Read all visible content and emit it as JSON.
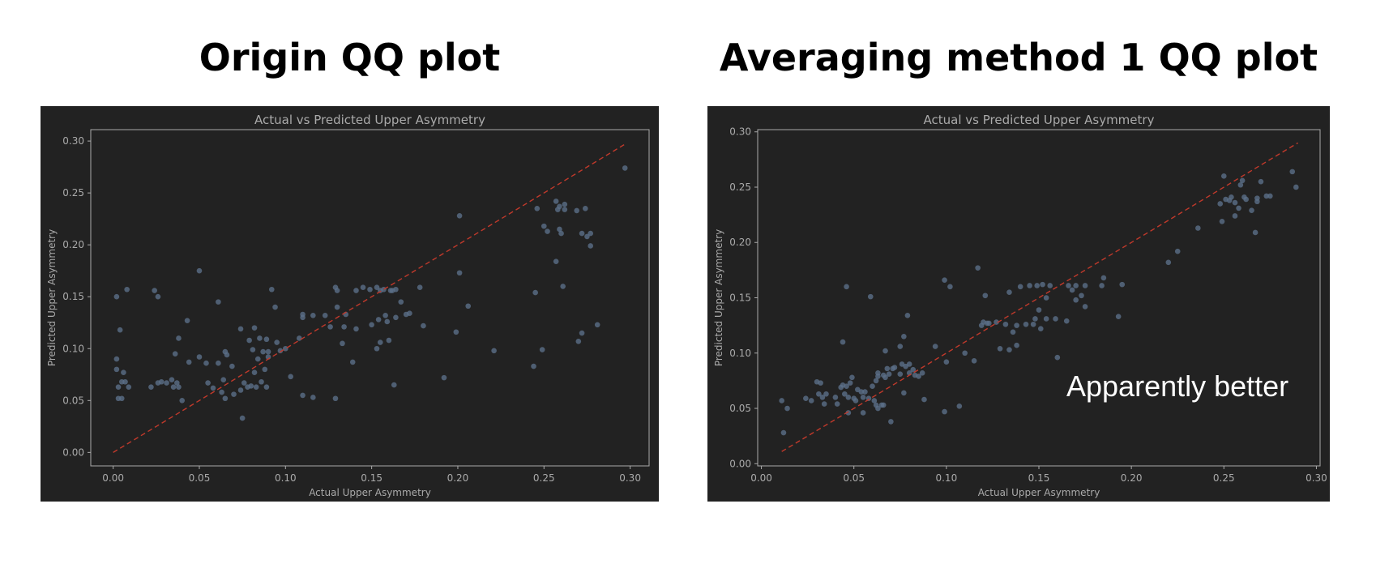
{
  "headings": {
    "left": "Origin QQ plot",
    "right": "Averaging method 1 QQ plot"
  },
  "annotation": "Apparently better",
  "colors": {
    "panel_bg": "#222222",
    "point": "#5b6f88",
    "ref_line": "#c0392b",
    "axis_text": "#aaaaaa",
    "frame": "#aaaaaa"
  },
  "chart_data": [
    {
      "type": "scatter",
      "title": "Actual vs Predicted Upper Asymmetry",
      "xlabel": "Actual Upper Asymmetry",
      "ylabel": "Predicted Upper Asymmetry",
      "xlim": [
        -0.013,
        0.311
      ],
      "ylim": [
        -0.013,
        0.311
      ],
      "xticks": [
        "0.00",
        "0.05",
        "0.10",
        "0.15",
        "0.20",
        "0.25",
        "0.30"
      ],
      "yticks": [
        "0.00",
        "0.05",
        "0.10",
        "0.15",
        "0.20",
        "0.25",
        "0.30"
      ],
      "ref_line": [
        0.0,
        0.297
      ],
      "points": [
        [
          0.002,
          0.15
        ],
        [
          0.002,
          0.09
        ],
        [
          0.002,
          0.08
        ],
        [
          0.003,
          0.052
        ],
        [
          0.003,
          0.063
        ],
        [
          0.004,
          0.118
        ],
        [
          0.005,
          0.052
        ],
        [
          0.005,
          0.068
        ],
        [
          0.006,
          0.077
        ],
        [
          0.007,
          0.068
        ],
        [
          0.008,
          0.157
        ],
        [
          0.009,
          0.063
        ],
        [
          0.022,
          0.063
        ],
        [
          0.024,
          0.156
        ],
        [
          0.026,
          0.15
        ],
        [
          0.026,
          0.067
        ],
        [
          0.028,
          0.068
        ],
        [
          0.031,
          0.067
        ],
        [
          0.034,
          0.07
        ],
        [
          0.035,
          0.063
        ],
        [
          0.036,
          0.095
        ],
        [
          0.037,
          0.067
        ],
        [
          0.038,
          0.063
        ],
        [
          0.038,
          0.11
        ],
        [
          0.04,
          0.05
        ],
        [
          0.043,
          0.127
        ],
        [
          0.044,
          0.087
        ],
        [
          0.05,
          0.175
        ],
        [
          0.05,
          0.092
        ],
        [
          0.054,
          0.086
        ],
        [
          0.055,
          0.067
        ],
        [
          0.058,
          0.062
        ],
        [
          0.061,
          0.145
        ],
        [
          0.061,
          0.086
        ],
        [
          0.063,
          0.058
        ],
        [
          0.064,
          0.07
        ],
        [
          0.065,
          0.097
        ],
        [
          0.065,
          0.052
        ],
        [
          0.066,
          0.094
        ],
        [
          0.069,
          0.083
        ],
        [
          0.07,
          0.056
        ],
        [
          0.074,
          0.119
        ],
        [
          0.074,
          0.06
        ],
        [
          0.075,
          0.033
        ],
        [
          0.076,
          0.067
        ],
        [
          0.078,
          0.063
        ],
        [
          0.079,
          0.108
        ],
        [
          0.08,
          0.064
        ],
        [
          0.081,
          0.099
        ],
        [
          0.082,
          0.077
        ],
        [
          0.082,
          0.12
        ],
        [
          0.083,
          0.063
        ],
        [
          0.084,
          0.09
        ],
        [
          0.085,
          0.11
        ],
        [
          0.086,
          0.068
        ],
        [
          0.087,
          0.097
        ],
        [
          0.088,
          0.08
        ],
        [
          0.089,
          0.109
        ],
        [
          0.089,
          0.063
        ],
        [
          0.09,
          0.092
        ],
        [
          0.09,
          0.097
        ],
        [
          0.092,
          0.157
        ],
        [
          0.094,
          0.14
        ],
        [
          0.095,
          0.106
        ],
        [
          0.097,
          0.098
        ],
        [
          0.1,
          0.1
        ],
        [
          0.103,
          0.073
        ],
        [
          0.108,
          0.11
        ],
        [
          0.11,
          0.055
        ],
        [
          0.11,
          0.13
        ],
        [
          0.11,
          0.133
        ],
        [
          0.116,
          0.132
        ],
        [
          0.116,
          0.053
        ],
        [
          0.123,
          0.132
        ],
        [
          0.126,
          0.121
        ],
        [
          0.129,
          0.159
        ],
        [
          0.129,
          0.052
        ],
        [
          0.13,
          0.156
        ],
        [
          0.13,
          0.14
        ],
        [
          0.133,
          0.105
        ],
        [
          0.134,
          0.121
        ],
        [
          0.135,
          0.133
        ],
        [
          0.139,
          0.087
        ],
        [
          0.141,
          0.156
        ],
        [
          0.141,
          0.119
        ],
        [
          0.145,
          0.159
        ],
        [
          0.149,
          0.157
        ],
        [
          0.15,
          0.123
        ],
        [
          0.153,
          0.159
        ],
        [
          0.153,
          0.1
        ],
        [
          0.154,
          0.128
        ],
        [
          0.155,
          0.106
        ],
        [
          0.155,
          0.156
        ],
        [
          0.157,
          0.157
        ],
        [
          0.158,
          0.132
        ],
        [
          0.159,
          0.126
        ],
        [
          0.16,
          0.108
        ],
        [
          0.161,
          0.156
        ],
        [
          0.162,
          0.156
        ],
        [
          0.163,
          0.065
        ],
        [
          0.164,
          0.157
        ],
        [
          0.164,
          0.13
        ],
        [
          0.167,
          0.145
        ],
        [
          0.17,
          0.133
        ],
        [
          0.172,
          0.134
        ],
        [
          0.178,
          0.159
        ],
        [
          0.18,
          0.122
        ],
        [
          0.192,
          0.072
        ],
        [
          0.199,
          0.116
        ],
        [
          0.201,
          0.173
        ],
        [
          0.201,
          0.228
        ],
        [
          0.206,
          0.141
        ],
        [
          0.221,
          0.098
        ],
        [
          0.244,
          0.083
        ],
        [
          0.245,
          0.154
        ],
        [
          0.246,
          0.235
        ],
        [
          0.249,
          0.099
        ],
        [
          0.25,
          0.218
        ],
        [
          0.252,
          0.213
        ],
        [
          0.257,
          0.242
        ],
        [
          0.257,
          0.184
        ],
        [
          0.258,
          0.234
        ],
        [
          0.259,
          0.215
        ],
        [
          0.259,
          0.237
        ],
        [
          0.26,
          0.211
        ],
        [
          0.261,
          0.16
        ],
        [
          0.262,
          0.239
        ],
        [
          0.262,
          0.234
        ],
        [
          0.269,
          0.233
        ],
        [
          0.27,
          0.107
        ],
        [
          0.272,
          0.211
        ],
        [
          0.272,
          0.115
        ],
        [
          0.274,
          0.235
        ],
        [
          0.275,
          0.208
        ],
        [
          0.277,
          0.211
        ],
        [
          0.277,
          0.199
        ],
        [
          0.281,
          0.123
        ],
        [
          0.297,
          0.274
        ]
      ]
    },
    {
      "type": "scatter",
      "title": "Actual vs Predicted Upper Asymmetry",
      "xlabel": "Actual Upper Asymmetry",
      "ylabel": "Predicted Upper Asymmetry",
      "xlim": [
        -0.002,
        0.302
      ],
      "ylim": [
        -0.002,
        0.302
      ],
      "xticks": [
        "0.00",
        "0.05",
        "0.10",
        "0.15",
        "0.20",
        "0.25",
        "0.30"
      ],
      "yticks": [
        "0.00",
        "0.05",
        "0.10",
        "0.15",
        "0.20",
        "0.25",
        "0.30"
      ],
      "ref_line": [
        0.011,
        0.29
      ],
      "points": [
        [
          0.011,
          0.057
        ],
        [
          0.012,
          0.028
        ],
        [
          0.014,
          0.05
        ],
        [
          0.024,
          0.059
        ],
        [
          0.027,
          0.057
        ],
        [
          0.03,
          0.074
        ],
        [
          0.031,
          0.063
        ],
        [
          0.032,
          0.073
        ],
        [
          0.033,
          0.06
        ],
        [
          0.034,
          0.054
        ],
        [
          0.035,
          0.063
        ],
        [
          0.04,
          0.06
        ],
        [
          0.041,
          0.054
        ],
        [
          0.043,
          0.069
        ],
        [
          0.044,
          0.071
        ],
        [
          0.044,
          0.11
        ],
        [
          0.045,
          0.063
        ],
        [
          0.046,
          0.16
        ],
        [
          0.046,
          0.07
        ],
        [
          0.047,
          0.046
        ],
        [
          0.047,
          0.06
        ],
        [
          0.048,
          0.073
        ],
        [
          0.049,
          0.078
        ],
        [
          0.05,
          0.059
        ],
        [
          0.051,
          0.057
        ],
        [
          0.052,
          0.067
        ],
        [
          0.054,
          0.065
        ],
        [
          0.055,
          0.06
        ],
        [
          0.055,
          0.046
        ],
        [
          0.056,
          0.065
        ],
        [
          0.058,
          0.059
        ],
        [
          0.059,
          0.151
        ],
        [
          0.06,
          0.07
        ],
        [
          0.061,
          0.057
        ],
        [
          0.062,
          0.075
        ],
        [
          0.062,
          0.053
        ],
        [
          0.063,
          0.079
        ],
        [
          0.063,
          0.082
        ],
        [
          0.063,
          0.05
        ],
        [
          0.065,
          0.053
        ],
        [
          0.066,
          0.08
        ],
        [
          0.066,
          0.053
        ],
        [
          0.067,
          0.078
        ],
        [
          0.067,
          0.102
        ],
        [
          0.068,
          0.086
        ],
        [
          0.069,
          0.081
        ],
        [
          0.07,
          0.038
        ],
        [
          0.071,
          0.086
        ],
        [
          0.072,
          0.087
        ],
        [
          0.075,
          0.081
        ],
        [
          0.075,
          0.106
        ],
        [
          0.076,
          0.09
        ],
        [
          0.077,
          0.115
        ],
        [
          0.077,
          0.064
        ],
        [
          0.078,
          0.088
        ],
        [
          0.079,
          0.134
        ],
        [
          0.08,
          0.082
        ],
        [
          0.08,
          0.09
        ],
        [
          0.082,
          0.085
        ],
        [
          0.083,
          0.08
        ],
        [
          0.085,
          0.079
        ],
        [
          0.087,
          0.082
        ],
        [
          0.088,
          0.058
        ],
        [
          0.094,
          0.106
        ],
        [
          0.099,
          0.166
        ],
        [
          0.099,
          0.047
        ],
        [
          0.1,
          0.092
        ],
        [
          0.102,
          0.16
        ],
        [
          0.107,
          0.052
        ],
        [
          0.11,
          0.1
        ],
        [
          0.115,
          0.093
        ],
        [
          0.117,
          0.177
        ],
        [
          0.119,
          0.125
        ],
        [
          0.12,
          0.128
        ],
        [
          0.121,
          0.152
        ],
        [
          0.122,
          0.127
        ],
        [
          0.123,
          0.127
        ],
        [
          0.127,
          0.128
        ],
        [
          0.129,
          0.104
        ],
        [
          0.132,
          0.126
        ],
        [
          0.134,
          0.103
        ],
        [
          0.134,
          0.155
        ],
        [
          0.136,
          0.119
        ],
        [
          0.138,
          0.107
        ],
        [
          0.138,
          0.125
        ],
        [
          0.14,
          0.16
        ],
        [
          0.143,
          0.126
        ],
        [
          0.145,
          0.161
        ],
        [
          0.147,
          0.126
        ],
        [
          0.148,
          0.131
        ],
        [
          0.149,
          0.161
        ],
        [
          0.15,
          0.139
        ],
        [
          0.151,
          0.122
        ],
        [
          0.152,
          0.162
        ],
        [
          0.154,
          0.15
        ],
        [
          0.154,
          0.131
        ],
        [
          0.156,
          0.161
        ],
        [
          0.159,
          0.131
        ],
        [
          0.16,
          0.096
        ],
        [
          0.165,
          0.129
        ],
        [
          0.166,
          0.161
        ],
        [
          0.168,
          0.157
        ],
        [
          0.17,
          0.161
        ],
        [
          0.17,
          0.148
        ],
        [
          0.173,
          0.152
        ],
        [
          0.175,
          0.142
        ],
        [
          0.175,
          0.161
        ],
        [
          0.184,
          0.161
        ],
        [
          0.185,
          0.168
        ],
        [
          0.193,
          0.133
        ],
        [
          0.195,
          0.162
        ],
        [
          0.22,
          0.182
        ],
        [
          0.225,
          0.192
        ],
        [
          0.236,
          0.213
        ],
        [
          0.248,
          0.235
        ],
        [
          0.249,
          0.219
        ],
        [
          0.25,
          0.26
        ],
        [
          0.251,
          0.239
        ],
        [
          0.253,
          0.238
        ],
        [
          0.254,
          0.241
        ],
        [
          0.256,
          0.236
        ],
        [
          0.256,
          0.224
        ],
        [
          0.258,
          0.231
        ],
        [
          0.259,
          0.252
        ],
        [
          0.26,
          0.256
        ],
        [
          0.261,
          0.241
        ],
        [
          0.262,
          0.239
        ],
        [
          0.265,
          0.229
        ],
        [
          0.267,
          0.209
        ],
        [
          0.268,
          0.24
        ],
        [
          0.268,
          0.237
        ],
        [
          0.27,
          0.255
        ],
        [
          0.273,
          0.242
        ],
        [
          0.275,
          0.242
        ],
        [
          0.287,
          0.264
        ],
        [
          0.289,
          0.25
        ]
      ]
    }
  ]
}
